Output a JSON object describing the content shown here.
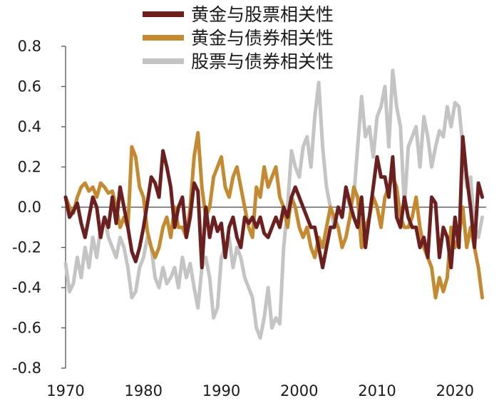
{
  "chart_data": {
    "type": "line",
    "title": "",
    "xlabel": "",
    "ylabel": "",
    "xlim": [
      1970,
      2024
    ],
    "ylim": [
      -0.8,
      0.8
    ],
    "yticks": [
      0.8,
      0.6,
      0.4,
      0.2,
      0.0,
      -0.2,
      -0.4,
      -0.6,
      -0.8
    ],
    "ytick_labels": [
      "0.8",
      "0.6",
      "0.4",
      "0.2",
      "0.0",
      "-0.2",
      "-0.4",
      "-0.6",
      "-0.8"
    ],
    "xticks": [
      1970,
      1980,
      1990,
      2000,
      2010,
      2020
    ],
    "xtick_labels": [
      "1970",
      "1980",
      "1990",
      "2000",
      "2010",
      "2020"
    ],
    "legend_position": "top-center",
    "series": [
      {
        "name": "黄金与股票相关性",
        "color": "#6b1f1f",
        "x": [
          1970,
          1970.5,
          1971,
          1971.5,
          1972,
          1972.5,
          1973,
          1973.5,
          1974,
          1974.5,
          1975,
          1975.5,
          1976,
          1976.5,
          1977,
          1977.5,
          1978,
          1978.5,
          1979,
          1979.5,
          1980,
          1980.5,
          1981,
          1981.5,
          1982,
          1982.5,
          1983,
          1983.5,
          1984,
          1984.5,
          1985,
          1985.5,
          1986,
          1986.5,
          1987,
          1987.5,
          1988,
          1988.5,
          1989,
          1989.5,
          1990,
          1990.5,
          1991,
          1991.5,
          1992,
          1992.5,
          1993,
          1993.5,
          1994,
          1994.5,
          1995,
          1995.5,
          1996,
          1996.5,
          1997,
          1997.5,
          1998,
          1998.5,
          1999,
          1999.5,
          2000,
          2000.5,
          2001,
          2001.5,
          2002,
          2002.5,
          2003,
          2003.5,
          2004,
          2004.5,
          2005,
          2005.5,
          2006,
          2006.5,
          2007,
          2007.5,
          2008,
          2008.5,
          2009,
          2009.5,
          2010,
          2010.5,
          2011,
          2011.5,
          2012,
          2012.5,
          2013,
          2013.5,
          2014,
          2014.5,
          2015,
          2015.5,
          2016,
          2016.5,
          2017,
          2017.5,
          2018,
          2018.5,
          2019,
          2019.5,
          2020,
          2020.5,
          2021,
          2021.5,
          2022,
          2022.5,
          2023,
          2023.5
        ],
        "values": [
          0.05,
          -0.05,
          -0.02,
          0.02,
          -0.08,
          -0.15,
          -0.05,
          0.05,
          0.0,
          -0.15,
          -0.05,
          -0.1,
          0.05,
          -0.08,
          0.1,
          0.0,
          -0.1,
          -0.22,
          -0.27,
          -0.2,
          -0.1,
          0.02,
          0.15,
          0.12,
          0.05,
          0.28,
          0.2,
          0.1,
          -0.1,
          0.0,
          0.05,
          -0.15,
          -0.05,
          0.12,
          0.08,
          -0.3,
          0.0,
          -0.15,
          -0.05,
          -0.12,
          -0.08,
          -0.25,
          -0.1,
          -0.05,
          -0.15,
          -0.2,
          -0.05,
          -0.08,
          -0.05,
          -0.1,
          -0.05,
          -0.13,
          -0.15,
          -0.1,
          -0.05,
          -0.1,
          0.0,
          -0.05,
          0.05,
          0.1,
          0.05,
          0.0,
          -0.05,
          -0.1,
          -0.1,
          -0.2,
          -0.3,
          -0.2,
          -0.1,
          -0.1,
          0.0,
          -0.05,
          0.1,
          0.02,
          -0.05,
          -0.1,
          0.05,
          -0.2,
          -0.05,
          0.1,
          0.25,
          0.15,
          0.15,
          0.05,
          0.25,
          -0.05,
          -0.1,
          0.05,
          -0.05,
          -0.1,
          -0.1,
          -0.2,
          -0.15,
          -0.25,
          0.05,
          0.02,
          -0.25,
          -0.1,
          -0.15,
          -0.3,
          -0.05,
          -0.2,
          0.35,
          0.15,
          0.0,
          -0.2,
          0.12,
          0.05
        ]
      },
      {
        "name": "黄金与债券相关性",
        "color": "#c48a32",
        "x": [
          1970,
          1970.5,
          1971,
          1971.5,
          1972,
          1972.5,
          1973,
          1973.5,
          1974,
          1974.5,
          1975,
          1975.5,
          1976,
          1976.5,
          1977,
          1977.5,
          1978,
          1978.5,
          1979,
          1979.5,
          1980,
          1980.5,
          1981,
          1981.5,
          1982,
          1982.5,
          1983,
          1983.5,
          1984,
          1984.5,
          1985,
          1985.5,
          1986,
          1986.5,
          1987,
          1987.5,
          1988,
          1988.5,
          1989,
          1989.5,
          1990,
          1990.5,
          1991,
          1991.5,
          1992,
          1992.5,
          1993,
          1993.5,
          1994,
          1994.5,
          1995,
          1995.5,
          1996,
          1996.5,
          1997,
          1997.5,
          1998,
          1998.5,
          1999,
          1999.5,
          2000,
          2000.5,
          2001,
          2001.5,
          2002,
          2002.5,
          2003,
          2003.5,
          2004,
          2004.5,
          2005,
          2005.5,
          2006,
          2006.5,
          2007,
          2007.5,
          2008,
          2008.5,
          2009,
          2009.5,
          2010,
          2010.5,
          2011,
          2011.5,
          2012,
          2012.5,
          2013,
          2013.5,
          2014,
          2014.5,
          2015,
          2015.5,
          2016,
          2016.5,
          2017,
          2017.5,
          2018,
          2018.5,
          2019,
          2019.5,
          2020,
          2020.5,
          2021,
          2021.5,
          2022,
          2022.5,
          2023,
          2023.5
        ],
        "values": [
          0.05,
          0.0,
          -0.03,
          0.05,
          0.1,
          0.12,
          0.08,
          0.1,
          0.05,
          0.12,
          0.1,
          0.07,
          0.08,
          0.0,
          -0.1,
          -0.05,
          -0.1,
          0.3,
          0.25,
          0.1,
          0.05,
          -0.12,
          -0.2,
          -0.25,
          -0.2,
          -0.1,
          -0.05,
          -0.15,
          0.0,
          -0.1,
          -0.1,
          -0.15,
          0.0,
          0.25,
          0.37,
          0.1,
          -0.05,
          0.0,
          0.15,
          0.2,
          0.25,
          0.1,
          0.05,
          0.15,
          0.2,
          0.1,
          0.0,
          -0.1,
          -0.15,
          0.1,
          0.05,
          0.2,
          0.1,
          0.15,
          0.2,
          0.05,
          0.0,
          -0.1,
          0.05,
          0.0,
          -0.1,
          -0.15,
          -0.1,
          -0.2,
          -0.25,
          -0.15,
          -0.2,
          -0.1,
          0.0,
          -0.05,
          -0.1,
          -0.2,
          -0.15,
          -0.05,
          0.1,
          0.05,
          -0.2,
          -0.1,
          -0.05,
          0.05,
          0.0,
          -0.1,
          0.05,
          0.1,
          0.15,
          0.1,
          -0.05,
          -0.1,
          -0.1,
          -0.05,
          0.05,
          -0.1,
          -0.2,
          -0.25,
          -0.3,
          -0.45,
          -0.35,
          -0.42,
          -0.35,
          -0.1,
          -0.2,
          -0.15,
          0.0,
          -0.2,
          -0.1,
          -0.2,
          -0.3,
          -0.45
        ]
      },
      {
        "name": "股票与债券相关性",
        "color": "#c4c4c4",
        "x": [
          1970,
          1970.5,
          1971,
          1971.5,
          1972,
          1972.5,
          1973,
          1973.5,
          1974,
          1974.5,
          1975,
          1975.5,
          1976,
          1976.5,
          1977,
          1977.5,
          1978,
          1978.5,
          1979,
          1979.5,
          1980,
          1980.5,
          1981,
          1981.5,
          1982,
          1982.5,
          1983,
          1983.5,
          1984,
          1984.5,
          1985,
          1985.5,
          1986,
          1986.5,
          1987,
          1987.5,
          1988,
          1988.5,
          1989,
          1989.5,
          1990,
          1990.5,
          1991,
          1991.5,
          1992,
          1992.5,
          1993,
          1993.5,
          1994,
          1994.5,
          1995,
          1995.5,
          1996,
          1996.5,
          1997,
          1997.5,
          1998,
          1998.5,
          1999,
          1999.5,
          2000,
          2000.5,
          2001,
          2001.5,
          2002,
          2002.5,
          2003,
          2003.5,
          2004,
          2004.5,
          2005,
          2005.5,
          2006,
          2006.5,
          2007,
          2007.5,
          2008,
          2008.5,
          2009,
          2009.5,
          2010,
          2010.5,
          2011,
          2011.5,
          2012,
          2012.5,
          2013,
          2013.5,
          2014,
          2014.5,
          2015,
          2015.5,
          2016,
          2016.5,
          2017,
          2017.5,
          2018,
          2018.5,
          2019,
          2019.5,
          2020,
          2020.5,
          2021,
          2021.5,
          2022,
          2022.5,
          2023,
          2023.5
        ],
        "values": [
          -0.28,
          -0.42,
          -0.38,
          -0.25,
          -0.35,
          -0.2,
          -0.3,
          -0.15,
          -0.25,
          -0.1,
          -0.05,
          -0.15,
          -0.2,
          -0.25,
          -0.15,
          -0.2,
          -0.3,
          -0.45,
          -0.42,
          -0.3,
          -0.25,
          -0.15,
          -0.2,
          -0.35,
          -0.4,
          -0.3,
          -0.38,
          -0.35,
          -0.3,
          -0.4,
          -0.25,
          -0.35,
          -0.28,
          -0.4,
          -0.5,
          -0.3,
          -0.25,
          -0.35,
          -0.55,
          -0.5,
          -0.25,
          -0.2,
          -0.15,
          -0.3,
          -0.2,
          -0.25,
          -0.35,
          -0.4,
          -0.45,
          -0.6,
          -0.65,
          -0.55,
          -0.4,
          -0.6,
          -0.55,
          -0.58,
          -0.2,
          0.0,
          0.28,
          0.2,
          0.15,
          0.3,
          0.35,
          0.2,
          0.45,
          0.62,
          0.3,
          0.1,
          0.0,
          -0.1,
          0.0,
          -0.05,
          0.1,
          0.0,
          0.05,
          0.3,
          0.55,
          0.35,
          0.4,
          0.25,
          0.45,
          0.5,
          0.6,
          0.3,
          0.68,
          0.5,
          0.4,
          0.0,
          0.3,
          0.35,
          0.4,
          0.2,
          0.45,
          0.35,
          0.2,
          0.3,
          0.38,
          0.35,
          0.5,
          0.4,
          0.52,
          0.5,
          0.3,
          0.1,
          0.15,
          -0.1,
          -0.15,
          -0.05
        ]
      }
    ]
  }
}
